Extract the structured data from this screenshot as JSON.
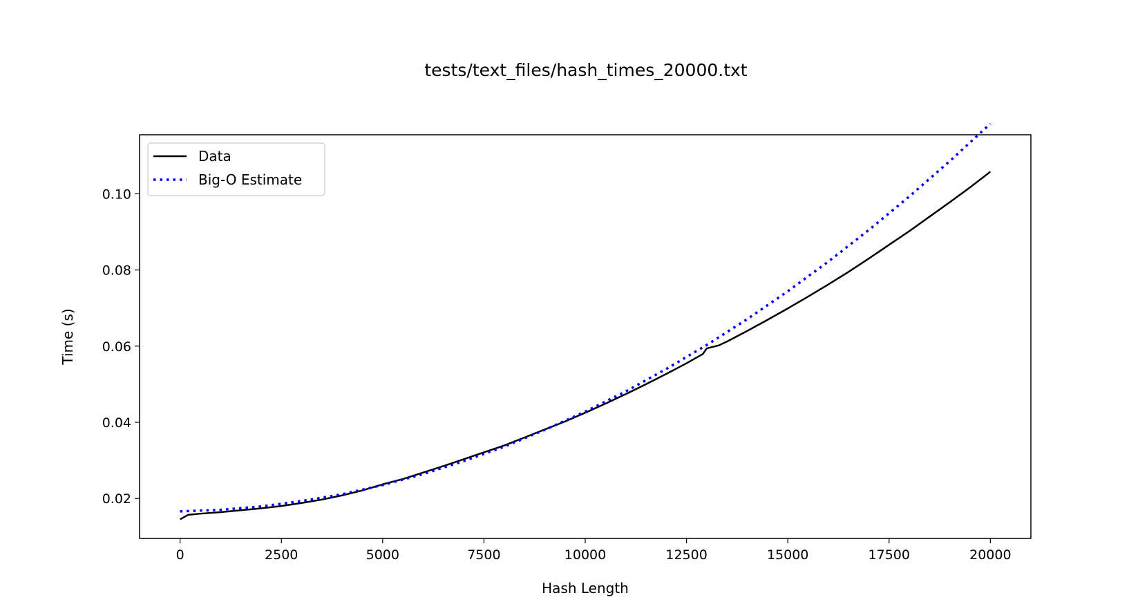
{
  "chart_data": {
    "type": "line",
    "title": "tests/text_files/hash_times_20000.txt",
    "xlabel": "Hash Length",
    "ylabel": "Time (s)",
    "xlim": [
      -1000,
      21000
    ],
    "ylim": [
      0.0095,
      0.1155
    ],
    "xticks": [
      0,
      2500,
      5000,
      7500,
      10000,
      12500,
      15000,
      17500,
      20000
    ],
    "xtick_labels": [
      "0",
      "2500",
      "5000",
      "7500",
      "10000",
      "12500",
      "15000",
      "17500",
      "20000"
    ],
    "yticks": [
      0.02,
      0.04,
      0.06,
      0.08,
      0.1
    ],
    "ytick_labels": [
      "0.02",
      "0.04",
      "0.06",
      "0.08",
      "0.10"
    ],
    "grid": false,
    "legend": {
      "placement": "top-left",
      "entries": [
        "Data",
        "Big-O Estimate"
      ]
    },
    "series": [
      {
        "name": "Data",
        "color": "#000000",
        "style": "solid",
        "x": [
          0,
          200,
          500,
          1000,
          1500,
          2000,
          2500,
          3000,
          3500,
          4000,
          4500,
          5000,
          5500,
          6000,
          6500,
          7000,
          7500,
          8000,
          8500,
          9000,
          9500,
          10000,
          10500,
          11000,
          11500,
          12000,
          12500,
          12900,
          13000,
          13300,
          13500,
          14000,
          14500,
          15000,
          15500,
          16000,
          16500,
          17000,
          17500,
          18000,
          18500,
          19000,
          19500,
          20000
        ],
        "y": [
          0.0145,
          0.0157,
          0.016,
          0.0164,
          0.0169,
          0.0174,
          0.018,
          0.0188,
          0.0197,
          0.0208,
          0.0221,
          0.0237,
          0.0251,
          0.0268,
          0.0285,
          0.0303,
          0.0321,
          0.0339,
          0.036,
          0.0381,
          0.0402,
          0.0425,
          0.0449,
          0.0474,
          0.05,
          0.0527,
          0.0555,
          0.0579,
          0.0594,
          0.0602,
          0.0612,
          0.064,
          0.0669,
          0.0699,
          0.073,
          0.0762,
          0.0795,
          0.083,
          0.0866,
          0.0902,
          0.094,
          0.0978,
          0.1017,
          0.1058
        ]
      },
      {
        "name": "Big-O Estimate",
        "color": "#0000ff",
        "style": "dotted",
        "x": [
          0,
          1000,
          2000,
          3000,
          4000,
          5000,
          6000,
          7000,
          8000,
          9000,
          10000,
          11000,
          12000,
          13000,
          14000,
          15000,
          16000,
          17000,
          18000,
          19000,
          20000
        ],
        "y": [
          0.0166,
          0.017,
          0.0179,
          0.0193,
          0.0211,
          0.0235,
          0.0264,
          0.0298,
          0.0336,
          0.038,
          0.0428,
          0.0481,
          0.054,
          0.0603,
          0.0671,
          0.0744,
          0.0822,
          0.0905,
          0.0993,
          0.1086,
          0.1184
        ]
      }
    ]
  }
}
